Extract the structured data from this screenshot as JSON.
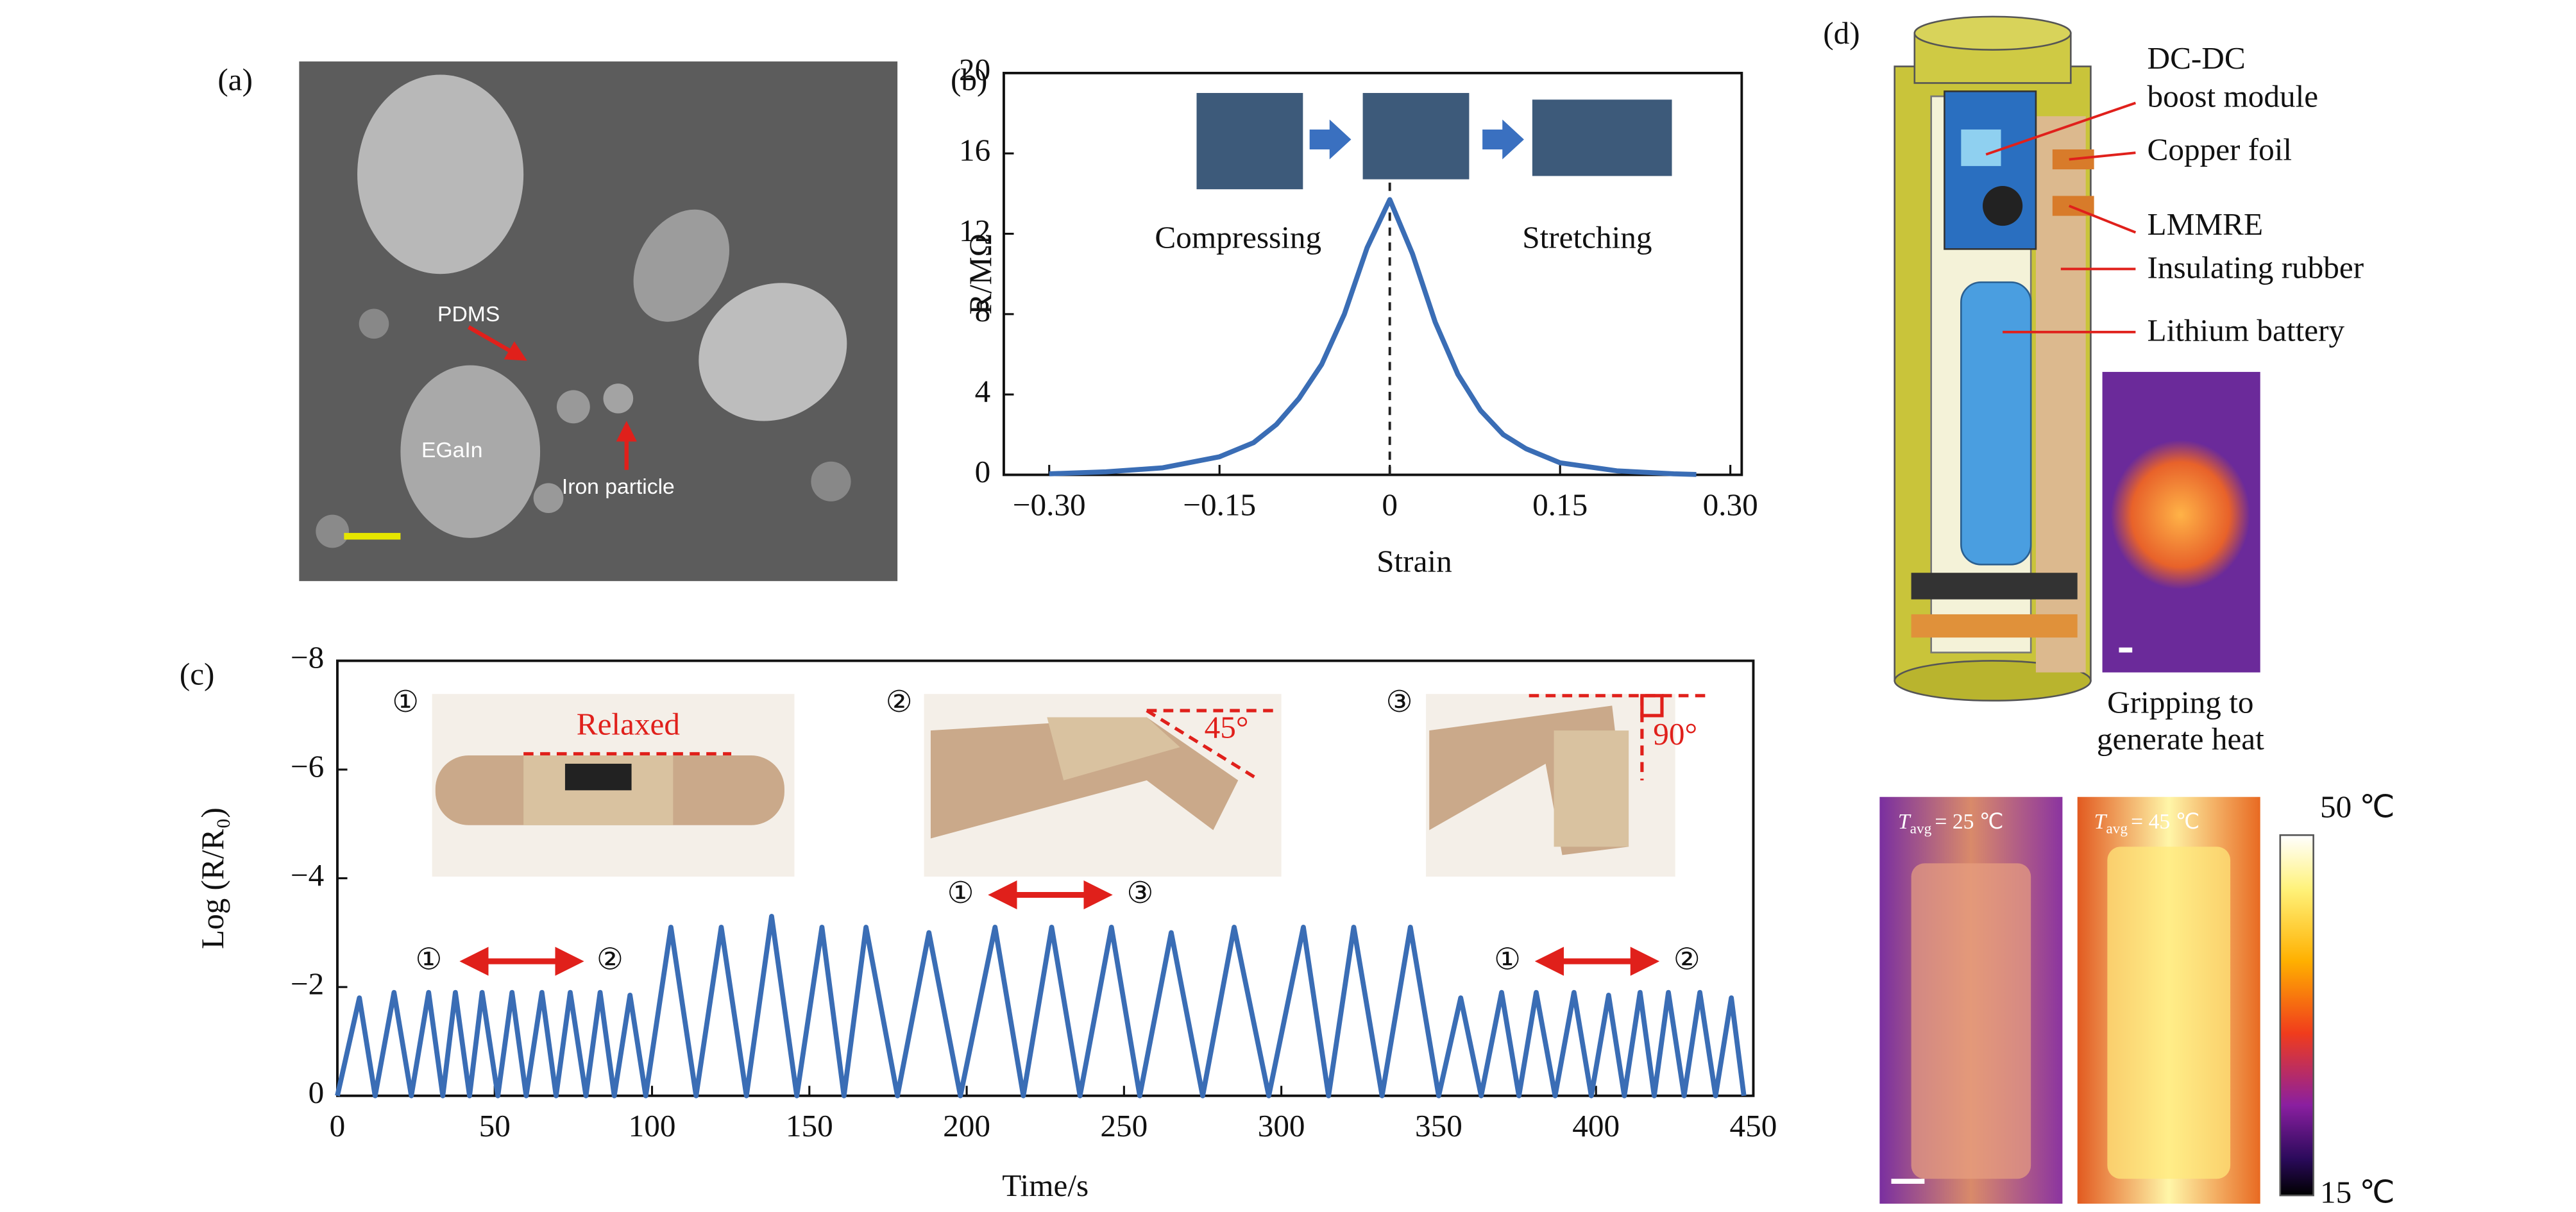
{
  "panels": {
    "a": {
      "label": "(a)",
      "annotations": [
        "PDMS",
        "EGaIn",
        "Iron particle"
      ]
    },
    "d": {
      "label": "(d)",
      "callouts": [
        "DC-DC",
        "boost module",
        "Copper foil",
        "LMMRE",
        "Insulating rubber",
        "Lithium battery"
      ],
      "caption": [
        "Gripping to",
        "generate heat"
      ],
      "thermal": [
        {
          "symbol": "T",
          "subscript": "avg",
          "text": "= 25 ℃"
        },
        {
          "symbol": "T",
          "subscript": "avg",
          "text": "= 45 ℃"
        }
      ],
      "colorbar": [
        "50 ℃",
        "15 ℃"
      ]
    }
  },
  "chart_data": [
    {
      "type": "line",
      "label": "(b)",
      "xlabel": "Strain",
      "ylabel": "R/MΩ",
      "annotations": [
        "Compressing",
        "Stretching"
      ],
      "x": [
        -0.3,
        -0.25,
        -0.2,
        -0.15,
        -0.12,
        -0.1,
        -0.08,
        -0.06,
        -0.04,
        -0.02,
        0,
        0.02,
        0.04,
        0.06,
        0.08,
        0.1,
        0.12,
        0.15,
        0.2,
        0.25,
        0.27
      ],
      "series": [
        {
          "color": "#3a6db5",
          "values": [
            0.05,
            0.15,
            0.35,
            0.9,
            1.6,
            2.5,
            3.8,
            5.5,
            8,
            11.3,
            13.7,
            11,
            7.6,
            5,
            3.2,
            2.0,
            1.3,
            0.6,
            0.2,
            0.05,
            0.02
          ]
        }
      ],
      "vline": 0,
      "xlim": [
        -0.34,
        0.31
      ],
      "xticks": [
        {
          "value": -0.3,
          "label": "−0.30"
        },
        {
          "value": -0.15,
          "label": "−0.15"
        },
        0,
        0.15,
        {
          "value": 0.3,
          "label": "0.30"
        }
      ],
      "ylim": [
        0,
        20
      ],
      "yticks": [
        0,
        4,
        8,
        12,
        16,
        20
      ]
    },
    {
      "type": "line",
      "label": "(c)",
      "xlabel": "Time/s",
      "ylabel": "Log (R/R₀)",
      "annotations": [
        "①",
        "②",
        "③",
        "Relaxed",
        "45°",
        "90°",
        "①",
        "②",
        "①",
        "③",
        "①",
        "②"
      ],
      "x": [
        0,
        7,
        12,
        18,
        23.5,
        29,
        33.5,
        37.5,
        42,
        46,
        51,
        55.5,
        60,
        65,
        69.5,
        74,
        79,
        83.5,
        88,
        93,
        98,
        106,
        114,
        122,
        130,
        138,
        146,
        154,
        161,
        168,
        178,
        188,
        198,
        209,
        218,
        227,
        236,
        246,
        255,
        265,
        275,
        285,
        296,
        307,
        315,
        323,
        332,
        341,
        350,
        357,
        363.5,
        370,
        375.5,
        381,
        387,
        393,
        398.5,
        404,
        409,
        414,
        418.5,
        423,
        428,
        433,
        438,
        443,
        447
      ],
      "series": [
        {
          "color": "#3a6db5",
          "values": [
            0,
            -1.8,
            0,
            -1.9,
            0,
            -1.9,
            0,
            -1.9,
            0,
            -1.9,
            0,
            -1.9,
            0,
            -1.9,
            0,
            -1.9,
            0,
            -1.9,
            0,
            -1.85,
            0,
            -3.1,
            0,
            -3.1,
            0,
            -3.3,
            0,
            -3.1,
            0,
            -3.1,
            0,
            -3.0,
            0,
            -3.1,
            0,
            -3.1,
            0,
            -3.1,
            0,
            -3.0,
            0,
            -3.1,
            0,
            -3.1,
            0,
            -3.1,
            0,
            -3.1,
            0,
            -1.8,
            0,
            -1.9,
            0,
            -1.9,
            0,
            -1.9,
            0,
            -1.85,
            0,
            -1.9,
            0,
            -1.9,
            0,
            -1.9,
            0,
            -1.8,
            0
          ]
        }
      ],
      "xlim": [
        0,
        450
      ],
      "xticks": [
        0,
        50,
        100,
        150,
        200,
        250,
        300,
        350,
        400,
        450
      ],
      "ylim": [
        0,
        -8
      ],
      "yticks": [
        0,
        {
          "value": -2,
          "label": "−2"
        },
        {
          "value": -4,
          "label": "−4"
        },
        {
          "value": -6,
          "label": "−6"
        },
        {
          "value": -8,
          "label": "−8"
        }
      ]
    }
  ]
}
